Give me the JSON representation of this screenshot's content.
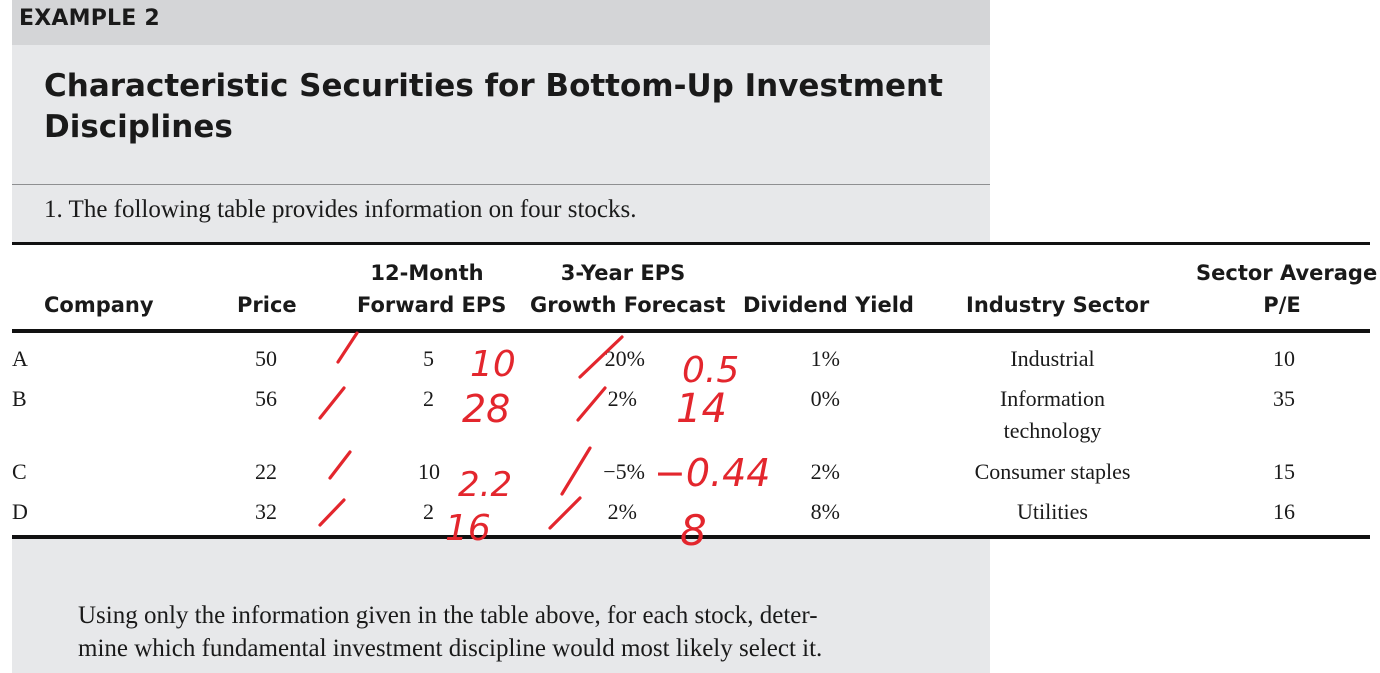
{
  "example_label": "EXAMPLE 2",
  "title_line1": "Characteristic Securities for Bottom-Up Investment",
  "title_line2": "Disciplines",
  "question": "1.  The following table provides information on four stocks.",
  "table": {
    "headers": {
      "company": "Company",
      "price": "Price",
      "fwd_eps_1": "12-Month",
      "fwd_eps_2": "Forward EPS",
      "growth_1": "3-Year EPS",
      "growth_2": "Growth Forecast",
      "dividend": "Dividend Yield",
      "industry": "Industry Sector",
      "pe_1": "Sector Average",
      "pe_2": "P/E"
    },
    "rows": [
      {
        "company": "A",
        "price": "50",
        "eps": "5",
        "growth": "20%",
        "dividend": "1%",
        "industry1": "Industrial",
        "industry2": "",
        "pe": "10"
      },
      {
        "company": "B",
        "price": "56",
        "eps": "2",
        "growth": "2%",
        "dividend": "0%",
        "industry1": "Information",
        "industry2": "technology",
        "pe": "35"
      },
      {
        "company": "C",
        "price": "22",
        "eps": "10",
        "growth": "−5%",
        "dividend": "2%",
        "industry1": "Consumer staples",
        "industry2": "",
        "pe": "15"
      },
      {
        "company": "D",
        "price": "32",
        "eps": "2",
        "growth": "2%",
        "dividend": "8%",
        "industry1": "Utilities",
        "industry2": "",
        "pe": "16"
      }
    ]
  },
  "instruction_line1": "Using only the information given in the table above, for each stock, deter-",
  "instruction_line2": "mine which fundamental investment discipline would most likely select it.",
  "annotations": {
    "color": "#e3262d",
    "pe_values": [
      "10",
      "28",
      "2.2",
      "16"
    ],
    "peg_values": [
      "0.5",
      "14",
      "−0.44",
      "8"
    ]
  }
}
